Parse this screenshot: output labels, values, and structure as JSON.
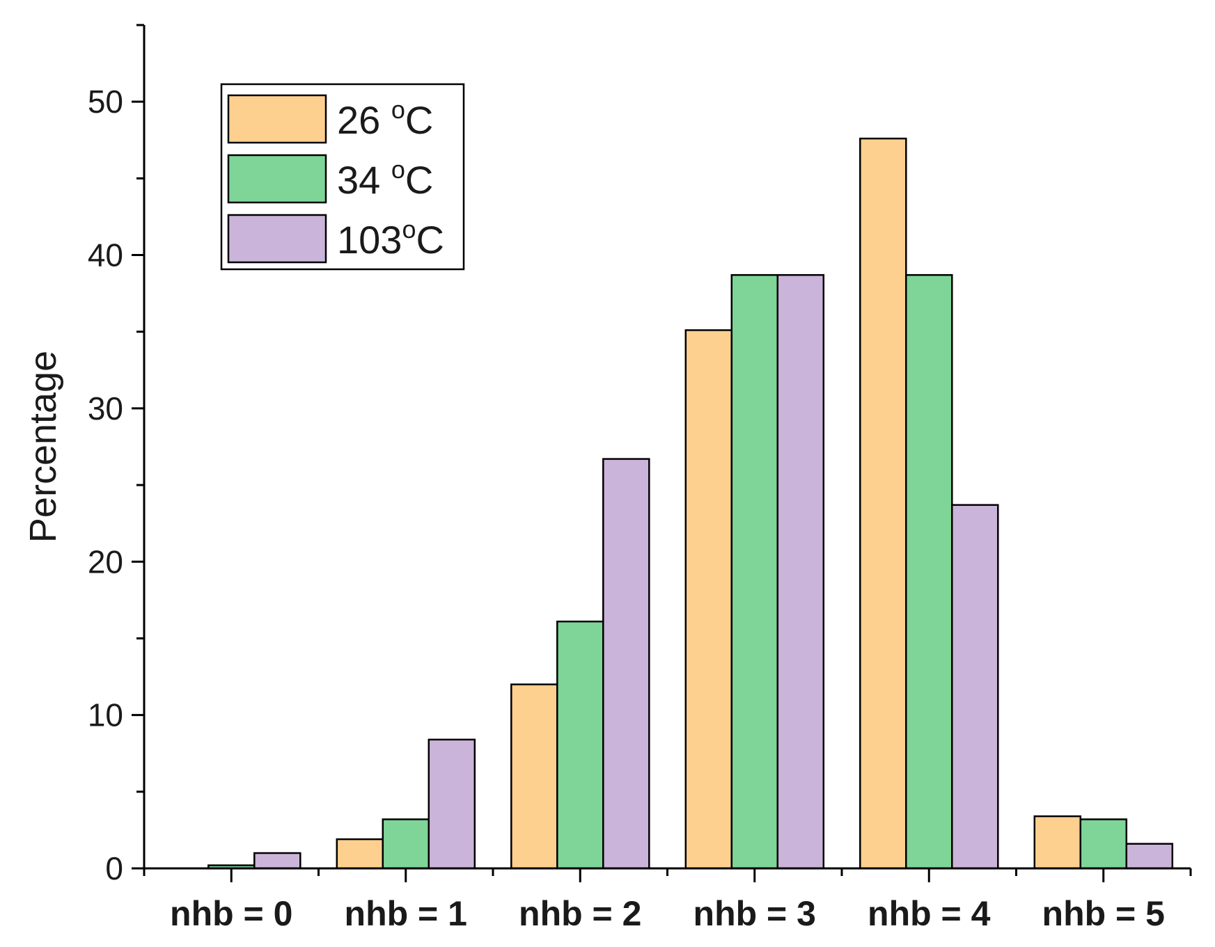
{
  "chart_data": {
    "type": "bar",
    "categories": [
      "nhb = 0",
      "nhb = 1",
      "nhb = 2",
      "nhb = 3",
      "nhb = 4",
      "nhb = 5"
    ],
    "series": [
      {
        "name": "26 oC",
        "legend_main": "26 ",
        "legend_sup": "o",
        "legend_tail": "C",
        "color": "#fdd08f",
        "values": [
          0.0,
          1.9,
          12.0,
          35.1,
          47.6,
          3.4
        ]
      },
      {
        "name": "34 oC",
        "legend_main": "34 ",
        "legend_sup": "o",
        "legend_tail": "C",
        "color": "#7ed597",
        "values": [
          0.2,
          3.2,
          16.1,
          38.7,
          38.7,
          3.2
        ]
      },
      {
        "name": "103oC",
        "legend_main": "103",
        "legend_sup": "o",
        "legend_tail": "C",
        "color": "#cbb4d9",
        "values": [
          1.0,
          8.4,
          26.7,
          38.7,
          23.7,
          1.6
        ]
      }
    ],
    "xlabel": "",
    "ylabel": "Percentage",
    "ylim": [
      0,
      55
    ],
    "yticks": [
      0,
      10,
      20,
      30,
      40,
      50
    ],
    "y_minor_step": 5,
    "grid": false,
    "legend_position": "top-left",
    "bar_edge_color": "#000000"
  }
}
